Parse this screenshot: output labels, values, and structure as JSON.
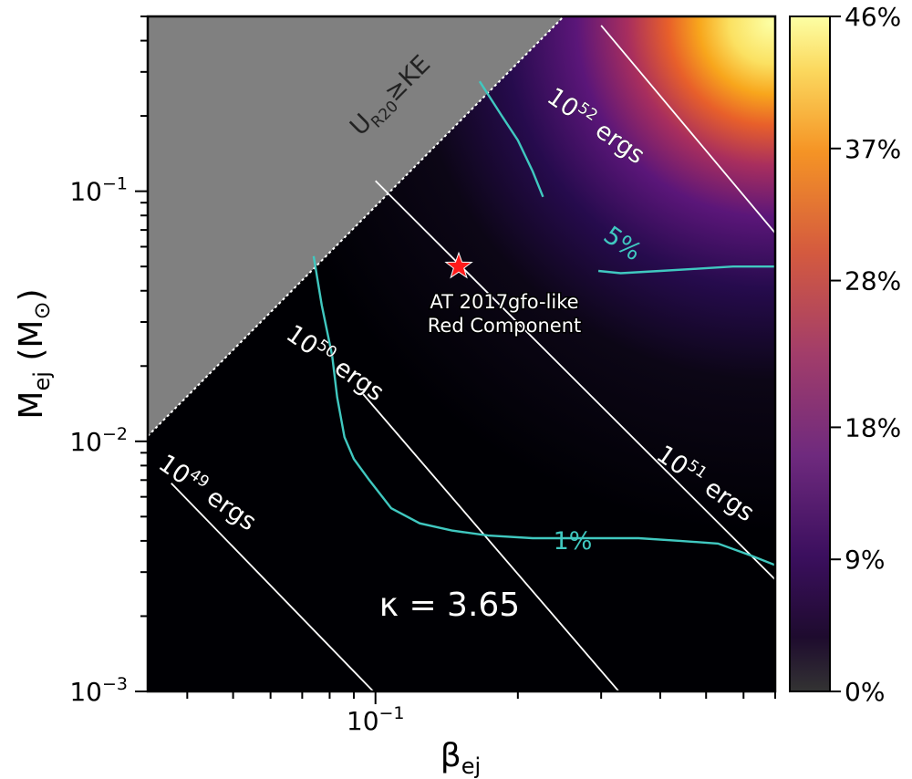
{
  "chart_data": {
    "type": "heatmap",
    "xlabel": "β",
    "xlabel_sub": "ej",
    "ylabel": "M",
    "ylabel_sub": "ej",
    "ylabel_unit": "(M",
    "ylabel_unit_symbol": "⊙",
    "ylabel_unit_close": ")",
    "x_scale": "log",
    "y_scale": "log",
    "xlim": [
      0.033,
      0.7
    ],
    "ylim": [
      0.001,
      0.5
    ],
    "x_tick_labels": [
      {
        "value": 0.1,
        "base": "10",
        "exp": "−1"
      }
    ],
    "y_tick_labels": [
      {
        "value": 0.1,
        "base": "10",
        "exp": "−1"
      },
      {
        "value": 0.01,
        "base": "10",
        "exp": "−2"
      },
      {
        "value": 0.001,
        "base": "10",
        "exp": "−3"
      }
    ],
    "colorbar": {
      "tick_labels": [
        "0%",
        "9%",
        "18%",
        "28%",
        "37%",
        "46%"
      ],
      "tick_values": [
        0,
        9,
        18,
        28,
        37,
        46
      ],
      "range": [
        0,
        46
      ],
      "colormap": "inferno"
    },
    "excluded_region": {
      "label_main": "U",
      "label_sub": "R20",
      "label_rest": "≥KE",
      "color": "#808080"
    },
    "energy_contours": [
      {
        "base": "10",
        "exp": "49",
        "unit": "ergs",
        "value": 1e+49
      },
      {
        "base": "10",
        "exp": "50",
        "unit": "ergs",
        "value": 1e+50
      },
      {
        "base": "10",
        "exp": "51",
        "unit": "ergs",
        "value": 1e+51
      },
      {
        "base": "10",
        "exp": "52",
        "unit": "ergs",
        "value": 1e+52
      }
    ],
    "efficiency_contours": [
      {
        "label": "1%",
        "color": "#40c8c0",
        "points": [
          [
            0.074,
            0.055
          ],
          [
            0.077,
            0.035
          ],
          [
            0.081,
            0.022
          ],
          [
            0.083,
            0.015
          ],
          [
            0.086,
            0.0104
          ],
          [
            0.09,
            0.0085
          ],
          [
            0.097,
            0.007
          ],
          [
            0.108,
            0.0054
          ],
          [
            0.124,
            0.0047
          ],
          [
            0.145,
            0.0044
          ],
          [
            0.173,
            0.0042
          ],
          [
            0.215,
            0.0041
          ],
          [
            0.28,
            0.0041
          ],
          [
            0.36,
            0.0041
          ],
          [
            0.44,
            0.004
          ],
          [
            0.53,
            0.0039
          ],
          [
            0.62,
            0.0035
          ],
          [
            0.7,
            0.0032
          ]
        ]
      },
      {
        "label": "5%",
        "color": "#40c8c0",
        "points_upper": [
          [
            0.166,
            0.275
          ],
          [
            0.185,
            0.2
          ],
          [
            0.2,
            0.16
          ],
          [
            0.215,
            0.12
          ],
          [
            0.226,
            0.095
          ]
        ],
        "points_lower": [
          [
            0.296,
            0.048
          ],
          [
            0.33,
            0.047
          ],
          [
            0.4,
            0.048
          ],
          [
            0.48,
            0.049
          ],
          [
            0.57,
            0.05
          ],
          [
            0.7,
            0.05
          ]
        ]
      }
    ],
    "marker": {
      "x": 0.15,
      "y": 0.05,
      "label_line1": "AT 2017gfo-like",
      "label_line2": "Red Component",
      "color": "#ff1a1a"
    },
    "annotation": "κ = 3.65"
  }
}
